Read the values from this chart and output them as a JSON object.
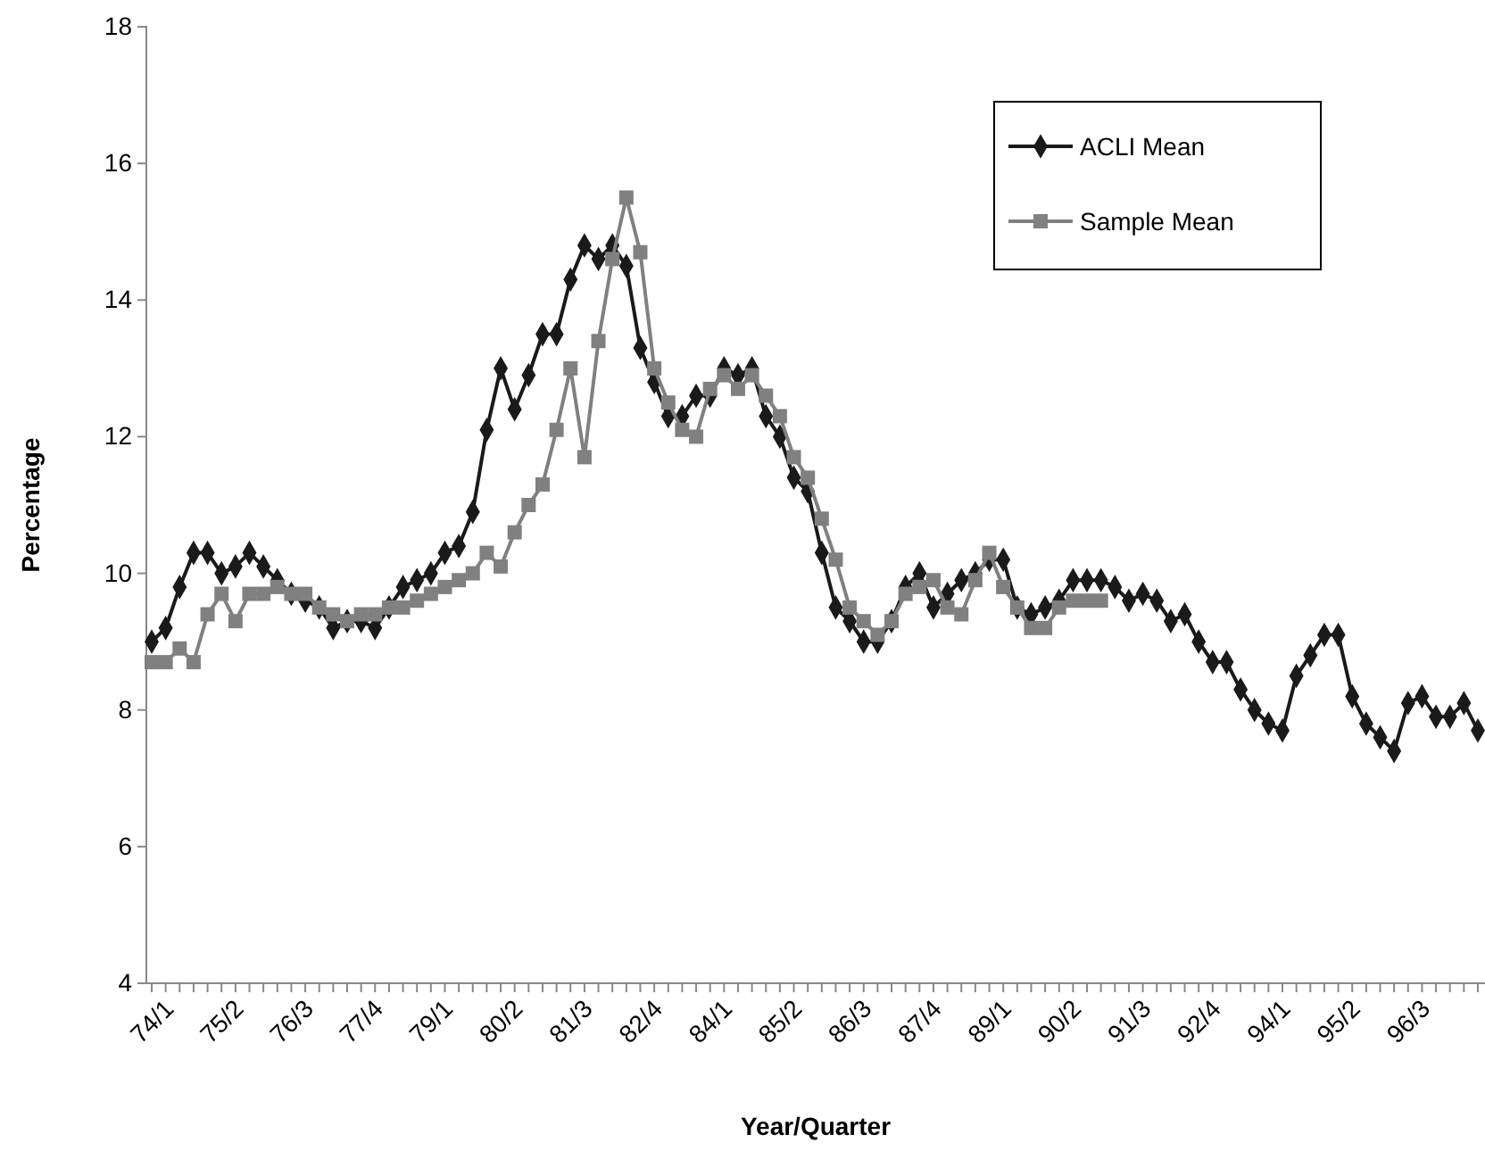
{
  "chart_data": {
    "type": "line",
    "xlabel": "Year/Quarter",
    "ylabel": "Percentage",
    "categories": [
      "74/1",
      null,
      null,
      null,
      null,
      "75/2",
      null,
      null,
      null,
      null,
      "76/3",
      null,
      null,
      null,
      null,
      "77/4",
      null,
      null,
      null,
      null,
      "79/1",
      null,
      null,
      null,
      null,
      "80/2",
      null,
      null,
      null,
      null,
      "81/3",
      null,
      null,
      null,
      null,
      "82/4",
      null,
      null,
      null,
      null,
      "84/1",
      null,
      null,
      null,
      null,
      "85/2",
      null,
      null,
      null,
      null,
      "86/3",
      null,
      null,
      null,
      null,
      "87/4",
      null,
      null,
      null,
      null,
      "89/1",
      null,
      null,
      null,
      null,
      "90/2",
      null,
      null,
      null,
      null,
      "91/3",
      null,
      null,
      null,
      null,
      "92/4",
      null,
      null,
      null,
      null,
      "94/1",
      null,
      null,
      null,
      null,
      "95/2",
      null,
      null,
      null,
      null,
      "96/3",
      null,
      null,
      null,
      null,
      null
    ],
    "ylim": [
      4,
      18
    ],
    "yticks": [
      4,
      6,
      8,
      10,
      12,
      14,
      16,
      18
    ],
    "grid": false,
    "legend": "top right",
    "line_style": "solid",
    "series": [
      {
        "name": "ACLI Mean",
        "color": "#1a1a1a",
        "marker": "diamond",
        "values": [
          9.0,
          9.2,
          9.8,
          10.3,
          10.3,
          10.0,
          10.1,
          10.3,
          10.1,
          9.9,
          9.7,
          9.6,
          9.5,
          9.2,
          9.3,
          9.3,
          9.2,
          9.5,
          9.8,
          9.9,
          10.0,
          10.3,
          10.4,
          10.9,
          12.1,
          13.0,
          12.4,
          12.9,
          13.5,
          13.5,
          14.3,
          14.8,
          14.6,
          14.8,
          14.5,
          13.3,
          12.8,
          12.3,
          12.3,
          12.6,
          12.6,
          13.0,
          12.9,
          13.0,
          12.3,
          12.0,
          11.4,
          11.2,
          10.3,
          9.5,
          9.3,
          9.0,
          9.0,
          9.3,
          9.8,
          10.0,
          9.5,
          9.7,
          9.9,
          10.0,
          10.2,
          10.2,
          9.5,
          9.4,
          9.5,
          9.6,
          9.9,
          9.9,
          9.9,
          9.8,
          9.6,
          9.7,
          9.6,
          9.3,
          9.4,
          9.0,
          8.7,
          8.7,
          8.3,
          8.0,
          7.8,
          7.7,
          8.5,
          8.8,
          9.1,
          9.1,
          8.2,
          7.8,
          7.6,
          7.4,
          8.1,
          8.2,
          7.9,
          7.9,
          8.1,
          7.7
        ]
      },
      {
        "name": "Sample Mean",
        "color": "#808080",
        "marker": "square",
        "values": [
          8.7,
          8.7,
          8.9,
          8.7,
          9.4,
          9.7,
          9.3,
          9.7,
          9.7,
          9.8,
          9.7,
          9.7,
          9.5,
          9.4,
          9.3,
          9.4,
          9.4,
          9.5,
          9.5,
          9.6,
          9.7,
          9.8,
          9.9,
          10.0,
          10.3,
          10.1,
          10.6,
          11.0,
          11.3,
          12.1,
          13.0,
          11.7,
          13.4,
          14.6,
          15.5,
          14.7,
          13.0,
          12.5,
          12.1,
          12.0,
          12.7,
          12.9,
          12.7,
          12.9,
          12.6,
          12.3,
          11.7,
          11.4,
          10.8,
          10.2,
          9.5,
          9.3,
          9.1,
          9.3,
          9.7,
          9.8,
          9.9,
          9.5,
          9.4,
          9.9,
          10.3,
          9.8,
          9.5,
          9.2,
          9.2,
          9.5,
          9.6,
          9.6,
          9.6,
          null,
          null,
          null,
          null,
          null,
          null,
          null,
          null,
          null,
          null,
          null,
          null,
          null,
          null,
          null,
          null,
          null,
          null,
          null,
          null,
          null,
          null,
          null,
          null,
          null,
          null,
          null
        ]
      }
    ]
  }
}
